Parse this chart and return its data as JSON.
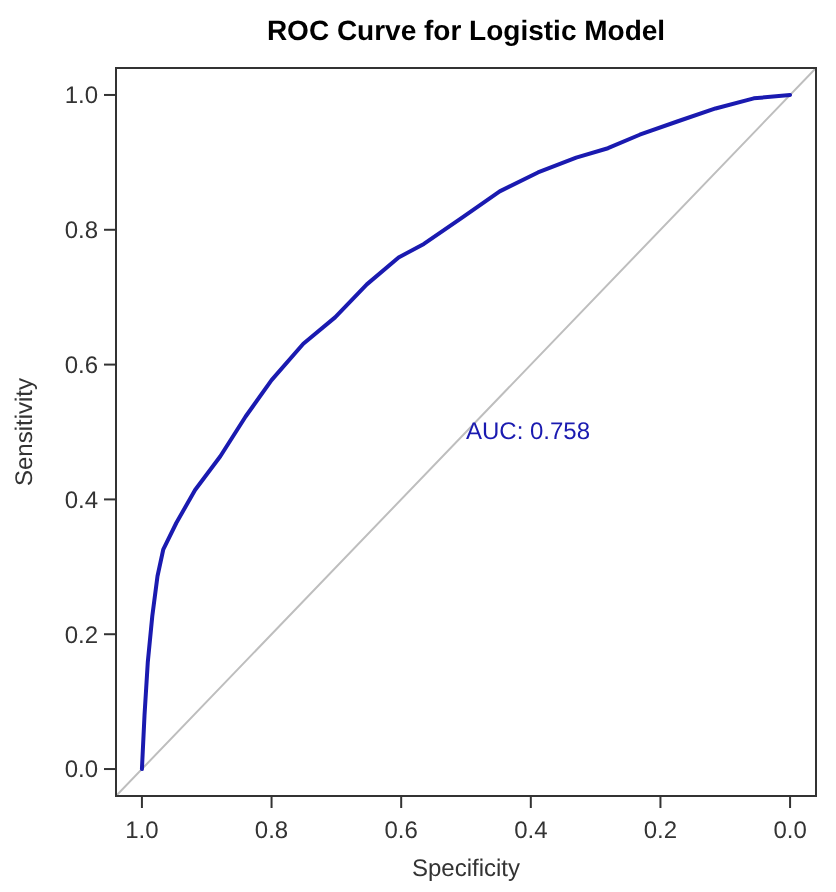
{
  "chart_data": {
    "type": "line",
    "title": "ROC Curve for Logistic Model",
    "xlabel": "Specificity",
    "ylabel": "Sensitivity",
    "xlim": [
      1.04,
      -0.04
    ],
    "ylim": [
      -0.04,
      1.04
    ],
    "xticks": [
      {
        "value": 1,
        "label": "1.0"
      },
      0.8,
      0.6,
      0.4,
      0.2,
      {
        "value": 0,
        "label": "0.0"
      }
    ],
    "yticks": [
      {
        "value": 0,
        "label": "0.0"
      },
      0.2,
      0.4,
      0.6,
      0.8,
      {
        "value": 1,
        "label": "1.0"
      }
    ],
    "marker": "none",
    "line_style": "solid",
    "series": [
      {
        "color": "#1a1ab0",
        "x": [
          1.0,
          0.996,
          0.991,
          0.984,
          0.976,
          0.967,
          0.947,
          0.918,
          0.879,
          0.84,
          0.8,
          0.751,
          0.702,
          0.653,
          0.604,
          0.565,
          0.506,
          0.448,
          0.389,
          0.33,
          0.281,
          0.232,
          0.173,
          0.115,
          0.056,
          0.0
        ],
        "values": [
          0.0,
          0.08,
          0.158,
          0.227,
          0.286,
          0.326,
          0.365,
          0.414,
          0.464,
          0.523,
          0.577,
          0.631,
          0.67,
          0.719,
          0.759,
          0.779,
          0.818,
          0.857,
          0.885,
          0.907,
          0.921,
          0.941,
          0.961,
          0.98,
          0.995,
          1.0
        ]
      },
      {
        "color": "#bebebe",
        "x": [
          1.04,
          -0.04
        ],
        "values": [
          -0.04,
          1.04
        ]
      }
    ],
    "annotations": [
      {
        "text": "AUC: 0.758",
        "x": 0.5,
        "y": 0.49
      }
    ]
  }
}
